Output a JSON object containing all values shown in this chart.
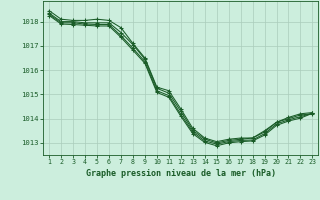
{
  "title": "Graphe pression niveau de la mer (hPa)",
  "bg_color": "#cceedd",
  "grid_color": "#aaccbb",
  "line_color": "#1a5c28",
  "ylim": [
    1012.5,
    1018.85
  ],
  "xlim": [
    0.5,
    23.5
  ],
  "yticks": [
    1013,
    1014,
    1015,
    1016,
    1017,
    1018
  ],
  "xticks": [
    1,
    2,
    3,
    4,
    5,
    6,
    7,
    8,
    9,
    10,
    11,
    12,
    13,
    14,
    15,
    16,
    17,
    18,
    19,
    20,
    21,
    22,
    23
  ],
  "series": [
    [
      1018.45,
      1018.1,
      1018.05,
      1018.05,
      1018.1,
      1018.05,
      1017.75,
      1017.1,
      1016.5,
      1015.3,
      1015.15,
      1014.4,
      1013.6,
      1013.2,
      1013.05,
      1013.15,
      1013.2,
      1013.2,
      1013.5,
      1013.85,
      1014.05,
      1014.2,
      1014.25
    ],
    [
      1018.35,
      1018.0,
      1018.0,
      1017.95,
      1017.95,
      1017.95,
      1017.55,
      1017.05,
      1016.45,
      1015.25,
      1015.05,
      1014.3,
      1013.52,
      1013.15,
      1013.0,
      1013.1,
      1013.15,
      1013.2,
      1013.45,
      1013.85,
      1014.0,
      1014.15,
      1014.2
    ],
    [
      1018.3,
      1017.95,
      1017.95,
      1017.9,
      1017.88,
      1017.88,
      1017.42,
      1016.9,
      1016.35,
      1015.15,
      1014.95,
      1014.18,
      1013.45,
      1013.08,
      1012.95,
      1013.05,
      1013.1,
      1013.12,
      1013.38,
      1013.78,
      1013.95,
      1014.08,
      1014.22
    ],
    [
      1018.25,
      1017.9,
      1017.88,
      1017.85,
      1017.82,
      1017.82,
      1017.35,
      1016.82,
      1016.28,
      1015.08,
      1014.88,
      1014.1,
      1013.38,
      1013.02,
      1012.88,
      1013.0,
      1013.05,
      1013.08,
      1013.32,
      1013.72,
      1013.9,
      1014.02,
      1014.22
    ]
  ]
}
